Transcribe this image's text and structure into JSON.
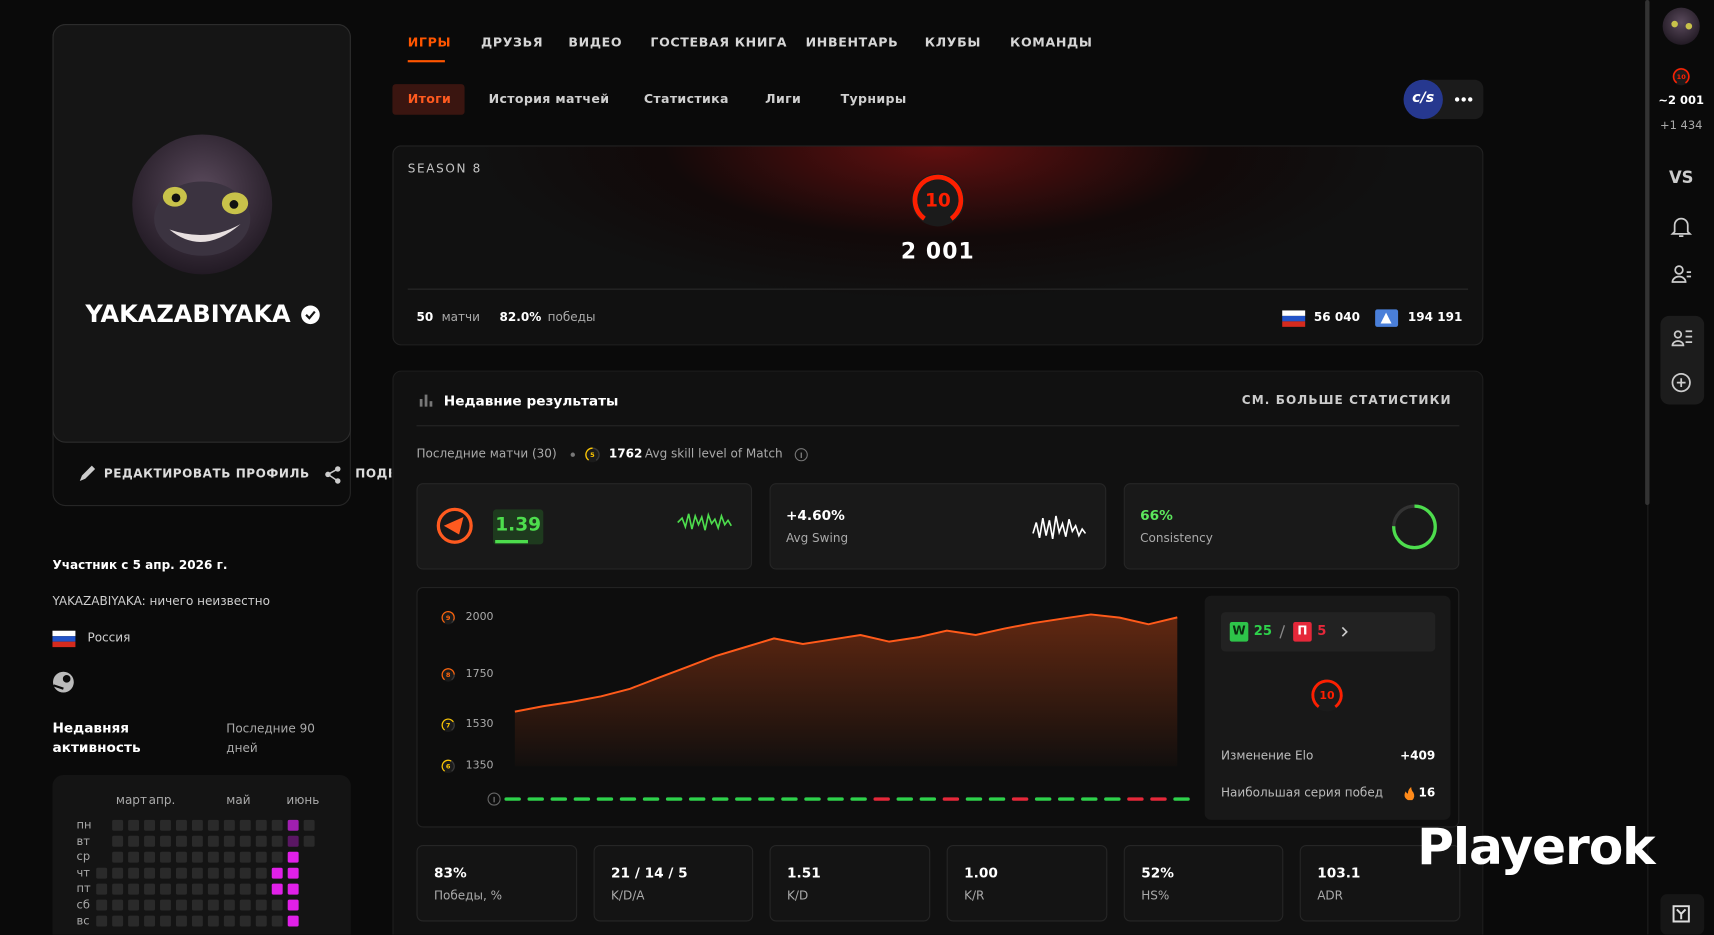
{
  "nav": {
    "tabs": [
      "ИГРЫ",
      "ДРУЗЬЯ",
      "ВИДЕО",
      "ГОСТЕВАЯ КНИГА",
      "ИНВЕНТАРЬ",
      "КЛУБЫ",
      "КОМАНДЫ"
    ],
    "subtabs": [
      "Итоги",
      "История матчей",
      "Статистика",
      "Лиги",
      "Турниры"
    ],
    "game_logo": "c/s"
  },
  "profile": {
    "name": "YAKAZABIYAKA",
    "edit": "РЕДАКТИРОВАТЬ ПРОФИЛЬ",
    "share": "ПОДЕЛИТЬСЯ",
    "member_since": "Участник с 5 апр. 2026 г.",
    "bio": "YAKAZABIYAKA: ничего неизвестно",
    "country": "Россия",
    "activity_title": "Недавняя активность",
    "activity_period": "Последние 90 дней"
  },
  "activity": {
    "months": [
      "март",
      "апр.",
      "май",
      "июнь"
    ],
    "days": [
      "пн",
      "вт",
      "ср",
      "чт",
      "пт",
      "сб",
      "вс"
    ],
    "grid": [
      [
        null,
        0,
        0,
        0,
        0,
        0,
        0,
        0,
        0,
        0,
        0,
        0,
        2,
        0
      ],
      [
        null,
        0,
        0,
        0,
        0,
        0,
        0,
        0,
        0,
        0,
        0,
        0,
        1,
        0
      ],
      [
        null,
        0,
        0,
        0,
        0,
        0,
        0,
        0,
        0,
        0,
        0,
        0,
        3,
        null
      ],
      [
        0,
        0,
        0,
        0,
        0,
        0,
        0,
        0,
        0,
        0,
        0,
        3,
        3,
        null
      ],
      [
        0,
        0,
        0,
        0,
        0,
        0,
        0,
        0,
        0,
        0,
        0,
        3,
        3,
        null
      ],
      [
        0,
        0,
        0,
        0,
        0,
        0,
        0,
        0,
        0,
        0,
        0,
        0,
        3,
        null
      ],
      [
        0,
        0,
        0,
        0,
        0,
        0,
        0,
        0,
        0,
        0,
        0,
        0,
        3,
        null
      ]
    ]
  },
  "season": {
    "title": "SEASON 8",
    "level": 10,
    "elo": "2 001",
    "matches": 50,
    "matches_label": "матчи",
    "winrate": "82.0%",
    "winrate_label": "победы",
    "country_rank": "56 040",
    "region_rank": "194 191"
  },
  "recent": {
    "title": "Недавние результаты",
    "more": "СМ. БОЛЬШЕ СТАТИСТИКИ",
    "last_matches": "Последние матчи (30)",
    "avg_level": 5,
    "avg_elo": 1762,
    "avg_label": "Avg skill level of Match",
    "rating": "1.39",
    "swing": "+4.60%",
    "swing_label": "Avg Swing",
    "consistency": "66%",
    "consistency_label": "Consistency",
    "elo_chart": {
      "ylim": [
        1350,
        2000
      ],
      "yticks": [
        2000,
        1750,
        1530,
        1350
      ],
      "tick_levels": [
        9,
        8,
        7,
        6
      ],
      "values": [
        1589,
        1613,
        1632,
        1656,
        1689,
        1737,
        1785,
        1833,
        1871,
        1909,
        1885,
        1904,
        1924,
        1895,
        1914,
        1943,
        1924,
        1952,
        1976,
        1995,
        2014,
        2000,
        1971,
        2001
      ],
      "results": [
        1,
        1,
        1,
        1,
        1,
        1,
        1,
        1,
        1,
        1,
        1,
        1,
        1,
        1,
        1,
        1,
        0,
        1,
        1,
        0,
        1,
        1,
        0,
        1,
        1,
        1,
        1,
        0,
        0,
        1
      ]
    },
    "summary": {
      "wins": "W",
      "wins_count": 25,
      "losses": "П",
      "losses_count": 5,
      "level": 10,
      "elo_change_label": "Изменение Elo",
      "elo_change": "+409",
      "streak_label": "Наибольшая серия побед",
      "streak": 16
    },
    "stats": [
      {
        "value": "83%",
        "label": "Победы, %"
      },
      {
        "value": "21 / 14 / 5",
        "label": "K/D/A"
      },
      {
        "value": "1.51",
        "label": "K/D"
      },
      {
        "value": "1.00",
        "label": "K/R"
      },
      {
        "value": "52%",
        "label": "HS%"
      },
      {
        "value": "103.1",
        "label": "ADR"
      }
    ]
  },
  "sidebar": {
    "level": 10,
    "elo": "~2 001",
    "delta": "+1 434",
    "vs": "VS"
  },
  "watermark": "Playerok"
}
